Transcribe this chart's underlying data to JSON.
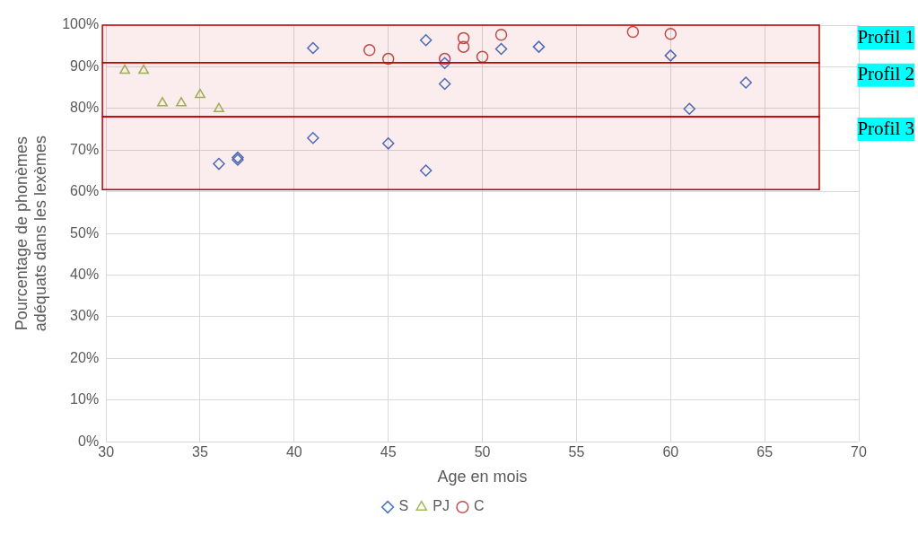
{
  "chart_data": {
    "type": "scatter",
    "xlabel": "Age en mois",
    "ylabel": "Pourcentage de phonèmes adéquats dans les lexèmes",
    "xlim": [
      30,
      70
    ],
    "xticks": [
      30,
      35,
      40,
      45,
      50,
      55,
      60,
      65,
      70
    ],
    "ylim": [
      0,
      100
    ],
    "yticks": [
      {
        "value": 0,
        "label": "0%"
      },
      {
        "value": 10,
        "label": "10%"
      },
      {
        "value": 20,
        "label": "20%"
      },
      {
        "value": 30,
        "label": "30%"
      },
      {
        "value": 40,
        "label": "40%"
      },
      {
        "value": 50,
        "label": "50%"
      },
      {
        "value": 60,
        "label": "60%"
      },
      {
        "value": 70,
        "label": "70%"
      },
      {
        "value": 80,
        "label": "80%"
      },
      {
        "value": 90,
        "label": "90%"
      },
      {
        "value": 100,
        "label": "100%"
      }
    ],
    "grid": true,
    "legend": "bottom",
    "series": [
      {
        "name": "S",
        "color": "#4472c4",
        "marker": "diamond",
        "x": [
          36,
          37,
          37,
          41,
          45,
          47,
          41,
          47,
          48,
          48,
          51,
          53,
          60,
          61,
          64
        ],
        "values": [
          66.7,
          67.7,
          68.2,
          72.9,
          71.6,
          65.1,
          94.5,
          96.4,
          90.9,
          85.9,
          94.3,
          94.8,
          92.7,
          79.9,
          86.2
        ]
      },
      {
        "name": "PJ",
        "color": "#9bbb59",
        "marker": "triangle",
        "x": [
          31,
          32,
          33,
          34,
          35,
          36
        ],
        "values": [
          89.1,
          89.1,
          81.3,
          81.3,
          83.3,
          79.9
        ]
      },
      {
        "name": "C",
        "color": "#c0504d",
        "marker": "circle",
        "x": [
          44,
          45,
          48,
          49,
          49,
          50,
          51,
          58,
          60
        ],
        "values": [
          94.0,
          91.9,
          91.9,
          96.9,
          94.8,
          92.4,
          97.7,
          98.4,
          97.9
        ]
      }
    ],
    "bands": [
      {
        "axis": "y",
        "from": 91,
        "to": 100,
        "label": "Profil 1",
        "color": "#c00000"
      },
      {
        "axis": "y",
        "from": 78,
        "to": 91,
        "label": "Profil 2",
        "color": "#c00000"
      },
      {
        "axis": "y",
        "from": 60.5,
        "to": 78,
        "label": "Profil 3",
        "color": "#c00000"
      }
    ]
  }
}
